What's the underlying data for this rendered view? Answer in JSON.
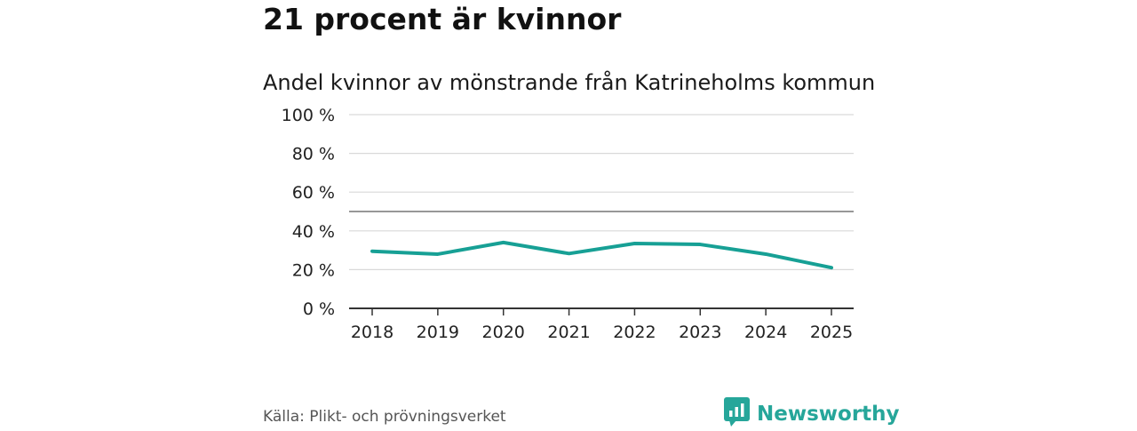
{
  "header": {
    "title": "21 procent är kvinnor",
    "subtitle": "Andel kvinnor av mönstrande från Katrineholms kommun"
  },
  "footer": {
    "source": "Källa: Plikt- och prövningsverket",
    "brand": "Newsworthy",
    "brand_icon": "newsworthy-logo-icon"
  },
  "colors": {
    "line": "#17a095",
    "grid": "#d9d9d9",
    "reference": "#777777",
    "axis": "#333333",
    "brand": "#26a69a"
  },
  "chart_data": {
    "type": "line",
    "title": "Andel kvinnor av mönstrande från Katrineholms kommun",
    "xlabel": "",
    "ylabel": "",
    "categories": [
      "2018",
      "2019",
      "2020",
      "2021",
      "2022",
      "2023",
      "2024",
      "2025"
    ],
    "series": [
      {
        "name": "Andel kvinnor",
        "values": [
          29.5,
          28,
          34,
          28.3,
          33.5,
          33,
          28,
          21
        ]
      }
    ],
    "ylim": [
      0,
      100
    ],
    "yticks": [
      0,
      20,
      40,
      60,
      80,
      100
    ],
    "ytick_labels": [
      "0 %",
      "20 %",
      "40 %",
      "60 %",
      "80 %",
      "100 %"
    ],
    "reference_line": 50,
    "grid": true
  }
}
